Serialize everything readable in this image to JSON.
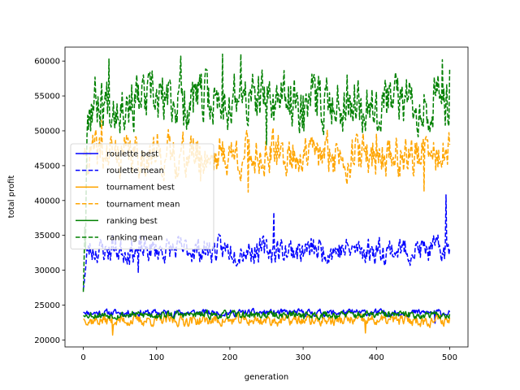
{
  "chart_data": {
    "type": "line",
    "title": "",
    "xlabel": "generation",
    "ylabel": "total profit",
    "xlim": [
      -25,
      525
    ],
    "ylim": [
      19000,
      62000
    ],
    "xticks": [
      0,
      100,
      200,
      300,
      400,
      500
    ],
    "yticks": [
      20000,
      25000,
      30000,
      35000,
      40000,
      45000,
      50000,
      55000,
      60000
    ],
    "grid": false,
    "legend_position": "center-left",
    "n_generations": 501,
    "series": [
      {
        "name": "roulette best",
        "color": "#0000ff",
        "style": "solid",
        "approx": {
          "start": 24000,
          "base": 23900,
          "noise": 400,
          "seed": 11
        },
        "keypoints": [
          [
            0,
            24000
          ],
          [
            100,
            24000
          ],
          [
            200,
            23900
          ],
          [
            300,
            24100
          ],
          [
            400,
            23800
          ],
          [
            480,
            22400
          ],
          [
            500,
            24000
          ]
        ]
      },
      {
        "name": "roulette mean",
        "color": "#0000ff",
        "style": "dashed",
        "approx": {
          "start": 27200,
          "base": 32900,
          "noise": 1500,
          "seed": 23
        },
        "keypoints": [
          [
            0,
            27200
          ],
          [
            5,
            33000
          ],
          [
            40,
            35000
          ],
          [
            75,
            29700
          ],
          [
            150,
            33000
          ],
          [
            260,
            38300
          ],
          [
            300,
            32000
          ],
          [
            400,
            33500
          ],
          [
            495,
            40800
          ],
          [
            500,
            33000
          ]
        ]
      },
      {
        "name": "tournament best",
        "color": "#ffa500",
        "style": "solid",
        "approx": {
          "start": 23000,
          "base": 22800,
          "noise": 650,
          "seed": 37
        },
        "keypoints": [
          [
            0,
            23000
          ],
          [
            40,
            20700
          ],
          [
            100,
            22800
          ],
          [
            200,
            22700
          ],
          [
            300,
            22900
          ],
          [
            385,
            21000
          ],
          [
            500,
            23200
          ]
        ]
      },
      {
        "name": "tournament mean",
        "color": "#ffa500",
        "style": "dashed",
        "approx": {
          "start": 46500,
          "base": 46500,
          "noise": 2500,
          "seed": 41
        },
        "keypoints": [
          [
            0,
            46500
          ],
          [
            25,
            51500
          ],
          [
            100,
            46500
          ],
          [
            160,
            42800
          ],
          [
            225,
            41200
          ],
          [
            300,
            46000
          ],
          [
            400,
            49500
          ],
          [
            465,
            41300
          ],
          [
            500,
            48000
          ]
        ]
      },
      {
        "name": "ranking best",
        "color": "#008000",
        "style": "solid",
        "approx": {
          "start": 23500,
          "base": 23600,
          "noise": 450,
          "seed": 53
        },
        "keypoints": [
          [
            0,
            23500
          ],
          [
            100,
            23700
          ],
          [
            200,
            23500
          ],
          [
            300,
            23800
          ],
          [
            400,
            23600
          ],
          [
            500,
            23700
          ]
        ]
      },
      {
        "name": "ranking mean",
        "color": "#008000",
        "style": "dashed",
        "approx": {
          "start": 26900,
          "base": 54300,
          "noise": 3200,
          "seed": 67
        },
        "keypoints": [
          [
            0,
            26900
          ],
          [
            3,
            33000
          ],
          [
            10,
            50000
          ],
          [
            35,
            60300
          ],
          [
            133,
            60700
          ],
          [
            190,
            61000
          ],
          [
            215,
            61000
          ],
          [
            250,
            48000
          ],
          [
            300,
            55000
          ],
          [
            360,
            58000
          ],
          [
            400,
            55500
          ],
          [
            490,
            60200
          ],
          [
            500,
            58800
          ]
        ]
      }
    ]
  }
}
